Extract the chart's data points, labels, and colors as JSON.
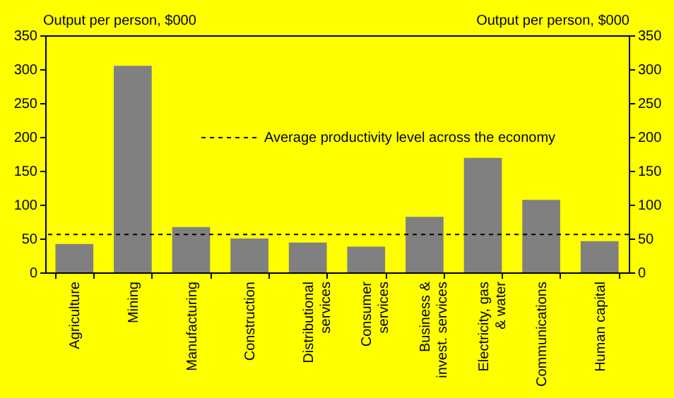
{
  "chart_data": {
    "type": "bar",
    "ylabel": "Output per person, $000",
    "y2label": "Output per person, $000",
    "categories": [
      "Agriculture",
      "Mining",
      "Manufacturing",
      "Construction",
      "Distributional\nservices",
      "Consumer\nservices",
      "Business &\ninvest. services",
      "Electricity, gas\n& water",
      "Communications",
      "Human capital"
    ],
    "series": [
      {
        "color": "#808080",
        "values": [
          42,
          305,
          67,
          50,
          44,
          38,
          82,
          169,
          107,
          46
        ]
      }
    ],
    "ylim": [
      0,
      350
    ],
    "yticks": [
      0,
      50,
      100,
      150,
      200,
      250,
      300,
      350
    ],
    "y2lim": [
      0,
      350
    ],
    "y2ticks": [
      0,
      50,
      100,
      150,
      200,
      250,
      300,
      350
    ],
    "ref_lines": [
      {
        "axis": "y",
        "value": 56,
        "label": "Average productivity level across the economy",
        "color": "#000000",
        "line_style": "dashed"
      }
    ],
    "legend": "top",
    "grid": false
  }
}
